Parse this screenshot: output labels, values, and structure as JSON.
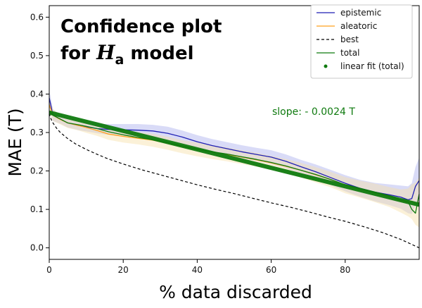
{
  "chart_data": {
    "type": "line",
    "title_line1": "Confidence plot",
    "title_line2_prefix": "for ",
    "title_symbol": "H",
    "title_subscript": "a",
    "title_line2_suffix": " model",
    "xlabel": "% data discarded",
    "ylabel": "MAE (T)",
    "xlim": [
      0,
      100
    ],
    "ylim": [
      -0.03,
      0.63
    ],
    "x_ticks": [
      0,
      20,
      40,
      60,
      80
    ],
    "y_ticks": [
      0.0,
      0.1,
      0.2,
      0.3,
      0.4,
      0.5,
      0.6
    ],
    "x_tick_labels": [
      "0",
      "20",
      "40",
      "60",
      "80"
    ],
    "y_tick_labels": [
      "0.0",
      "0.1",
      "0.2",
      "0.3",
      "0.4",
      "0.5",
      "0.6"
    ],
    "grid": false,
    "legend_position": "top-right",
    "annotation": "slope: - 0.0024 T",
    "series": [
      {
        "name": "epistemic",
        "color": "#1f1fb4",
        "band_color": "#aab0ee",
        "x": [
          0,
          1,
          3,
          5,
          8,
          10,
          13,
          16,
          20,
          24,
          28,
          32,
          36,
          40,
          44,
          48,
          52,
          56,
          60,
          64,
          68,
          72,
          76,
          80,
          84,
          88,
          92,
          95,
          97,
          98,
          99,
          100
        ],
        "y": [
          0.39,
          0.345,
          0.335,
          0.325,
          0.318,
          0.315,
          0.31,
          0.308,
          0.307,
          0.306,
          0.304,
          0.298,
          0.288,
          0.276,
          0.266,
          0.258,
          0.25,
          0.243,
          0.236,
          0.225,
          0.211,
          0.198,
          0.183,
          0.168,
          0.155,
          0.145,
          0.138,
          0.132,
          0.125,
          0.128,
          0.16,
          0.175
        ],
        "band": [
          0.02,
          0.015,
          0.012,
          0.012,
          0.012,
          0.012,
          0.012,
          0.014,
          0.015,
          0.016,
          0.016,
          0.017,
          0.017,
          0.017,
          0.017,
          0.017,
          0.017,
          0.017,
          0.018,
          0.018,
          0.018,
          0.019,
          0.02,
          0.021,
          0.022,
          0.024,
          0.027,
          0.03,
          0.035,
          0.04,
          0.05,
          0.06
        ]
      },
      {
        "name": "aleatoric",
        "color": "#ffa01e",
        "band_color": "#f6e0a8",
        "x": [
          0,
          1,
          3,
          5,
          8,
          10,
          13,
          16,
          20,
          24,
          28,
          32,
          36,
          40,
          44,
          48,
          52,
          56,
          60,
          64,
          68,
          72,
          76,
          80,
          84,
          88,
          92,
          95,
          97,
          98,
          99,
          100
        ],
        "y": [
          0.372,
          0.345,
          0.334,
          0.325,
          0.318,
          0.313,
          0.305,
          0.296,
          0.29,
          0.285,
          0.28,
          0.272,
          0.263,
          0.256,
          0.249,
          0.243,
          0.236,
          0.229,
          0.221,
          0.212,
          0.202,
          0.19,
          0.178,
          0.163,
          0.153,
          0.143,
          0.132,
          0.122,
          0.118,
          0.12,
          0.115,
          0.118
        ],
        "band": [
          0.02,
          0.015,
          0.013,
          0.013,
          0.013,
          0.014,
          0.014,
          0.015,
          0.016,
          0.016,
          0.017,
          0.017,
          0.017,
          0.018,
          0.018,
          0.018,
          0.018,
          0.018,
          0.018,
          0.019,
          0.019,
          0.02,
          0.02,
          0.021,
          0.022,
          0.024,
          0.026,
          0.03,
          0.036,
          0.045,
          0.055,
          0.065
        ]
      },
      {
        "name": "best",
        "color": "#000000",
        "dashed": true,
        "x": [
          0,
          0.5,
          1,
          2,
          3,
          5,
          7,
          10,
          13,
          16,
          20,
          25,
          30,
          35,
          40,
          45,
          50,
          55,
          60,
          65,
          70,
          75,
          80,
          85,
          90,
          95,
          100
        ],
        "y": [
          0.35,
          0.335,
          0.325,
          0.311,
          0.3,
          0.284,
          0.271,
          0.256,
          0.243,
          0.231,
          0.218,
          0.203,
          0.19,
          0.177,
          0.164,
          0.152,
          0.141,
          0.129,
          0.117,
          0.106,
          0.094,
          0.081,
          0.069,
          0.055,
          0.04,
          0.022,
          0.0
        ]
      },
      {
        "name": "total",
        "color": "#0f7a0f",
        "x": [
          0,
          1,
          3,
          5,
          8,
          10,
          13,
          16,
          20,
          24,
          28,
          32,
          36,
          40,
          44,
          48,
          52,
          56,
          60,
          64,
          68,
          72,
          76,
          80,
          84,
          88,
          92,
          95,
          97,
          98,
          99,
          100
        ],
        "y": [
          0.355,
          0.345,
          0.335,
          0.325,
          0.32,
          0.316,
          0.31,
          0.302,
          0.294,
          0.287,
          0.281,
          0.274,
          0.265,
          0.257,
          0.25,
          0.244,
          0.237,
          0.23,
          0.222,
          0.213,
          0.202,
          0.191,
          0.178,
          0.164,
          0.154,
          0.144,
          0.135,
          0.125,
          0.12,
          0.1,
          0.09,
          0.14
        ]
      },
      {
        "name": "linear fit (total)",
        "color": "#0f7a0f",
        "fit": true,
        "x": [
          0,
          100
        ],
        "y": [
          0.352,
          0.112
        ]
      }
    ]
  }
}
